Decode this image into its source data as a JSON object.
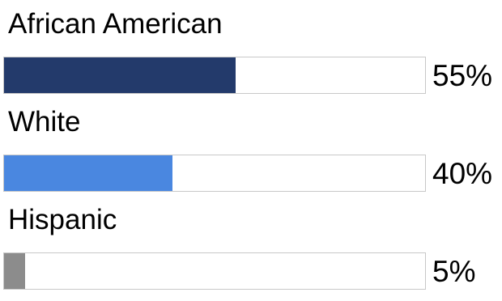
{
  "chart_data": {
    "type": "bar",
    "orientation": "horizontal",
    "categories": [
      "African American",
      "White",
      "Hispanic"
    ],
    "values": [
      55,
      40,
      5
    ],
    "value_labels": [
      "55%",
      "40%",
      "5%"
    ],
    "unit": "%",
    "xlim": [
      0,
      100
    ],
    "colors": [
      "#233a6b",
      "#4a87e0",
      "#8c8c8c"
    ],
    "title": "",
    "xlabel": "",
    "ylabel": ""
  }
}
